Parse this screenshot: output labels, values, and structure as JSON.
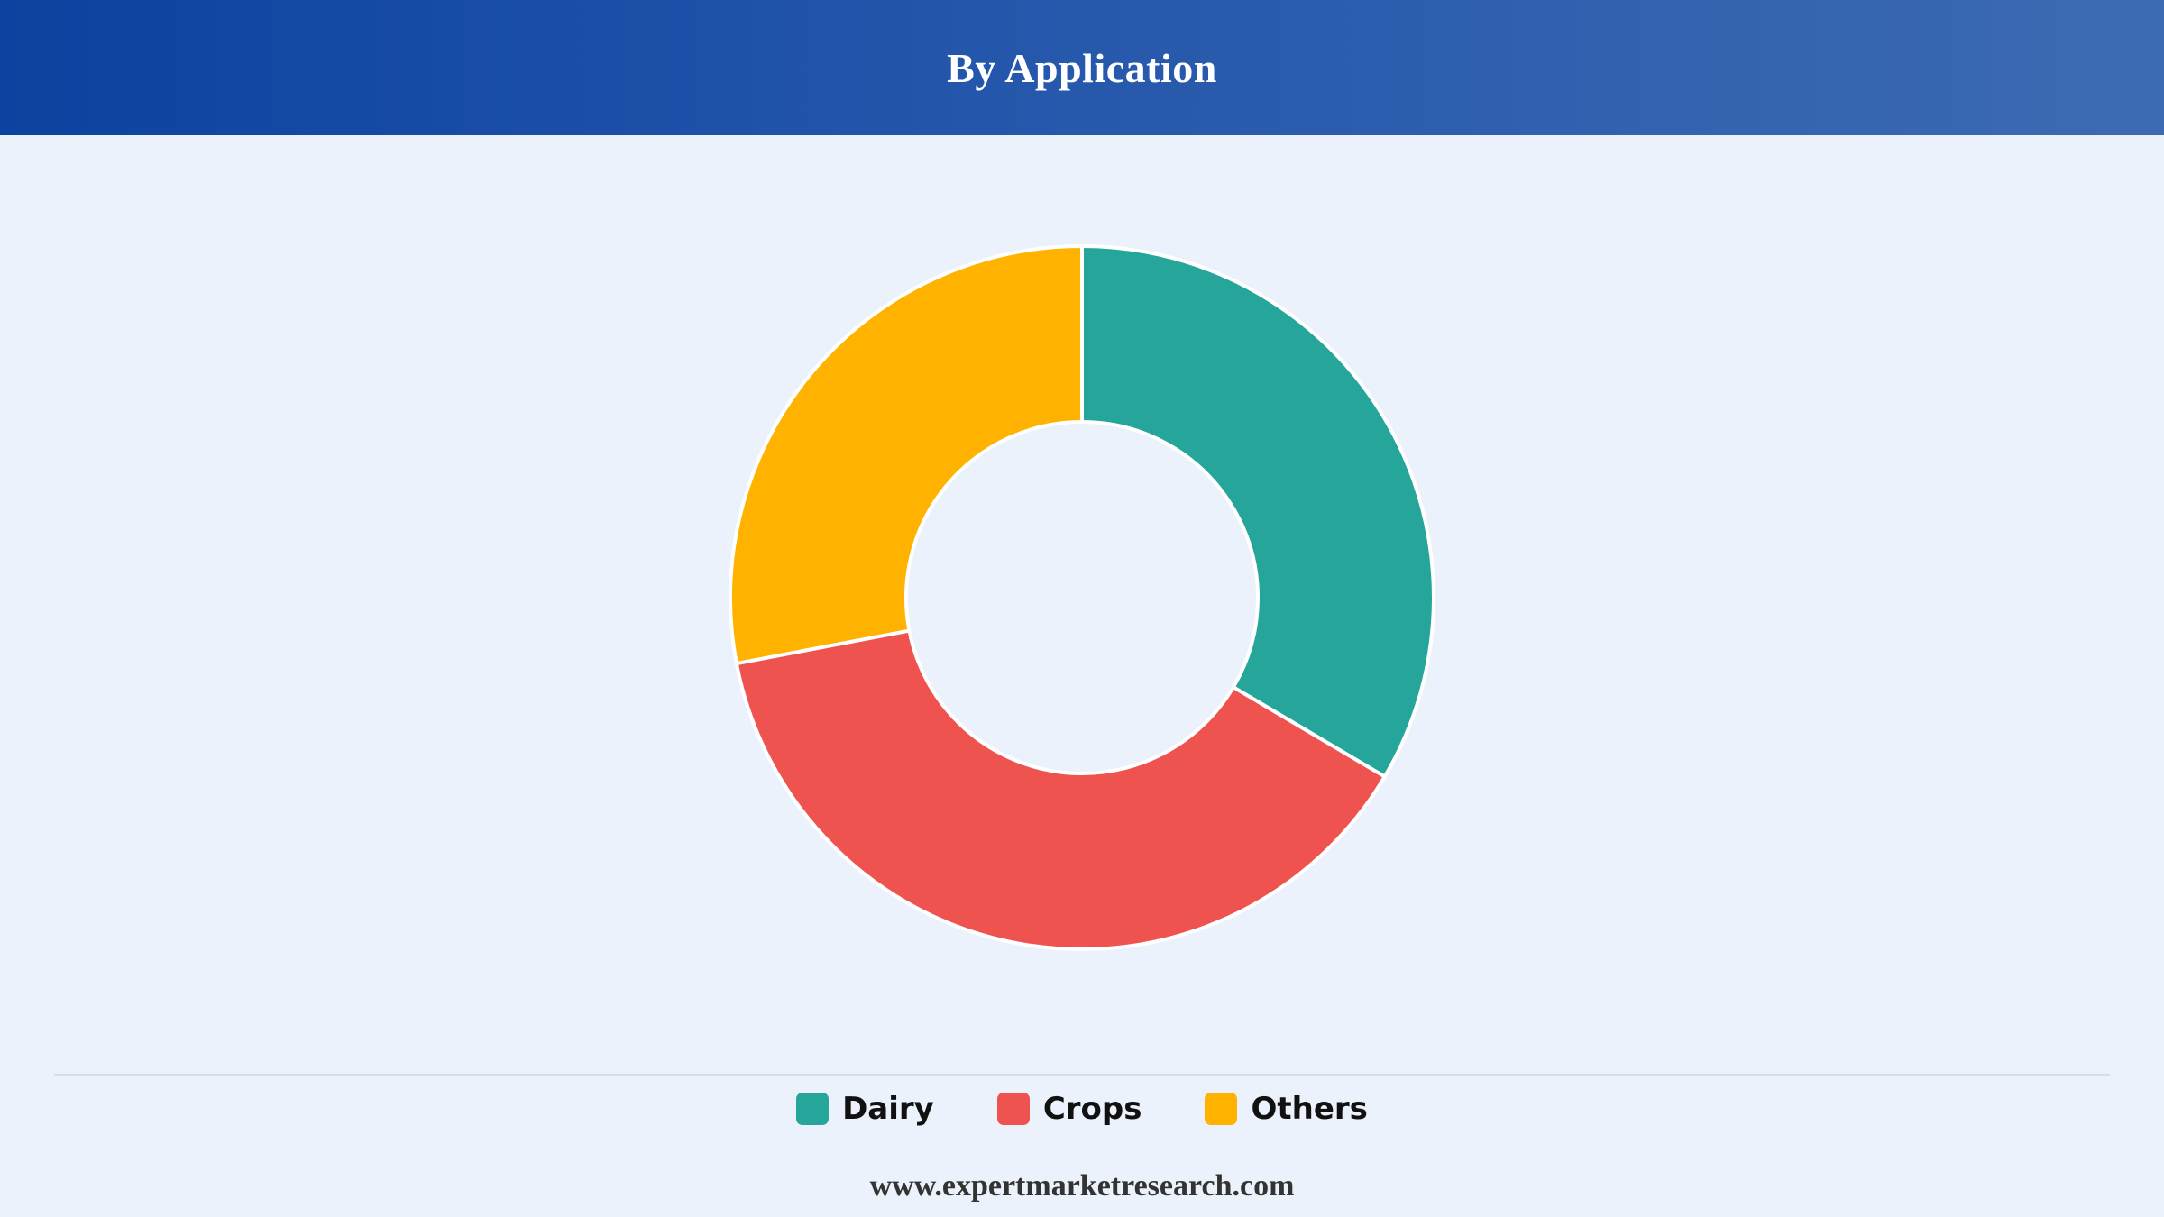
{
  "chart_data": {
    "type": "pie",
    "title": "By Application",
    "donut": true,
    "series": [
      {
        "name": "Dairy",
        "value": 33.5,
        "color": "#26a69a"
      },
      {
        "name": "Crops",
        "value": 38.5,
        "color": "#ef5350"
      },
      {
        "name": "Others",
        "value": 28.0,
        "color": "#ffb300"
      }
    ],
    "legend_position": "bottom"
  },
  "footer": {
    "source": "www.expertmarketresearch.com"
  }
}
